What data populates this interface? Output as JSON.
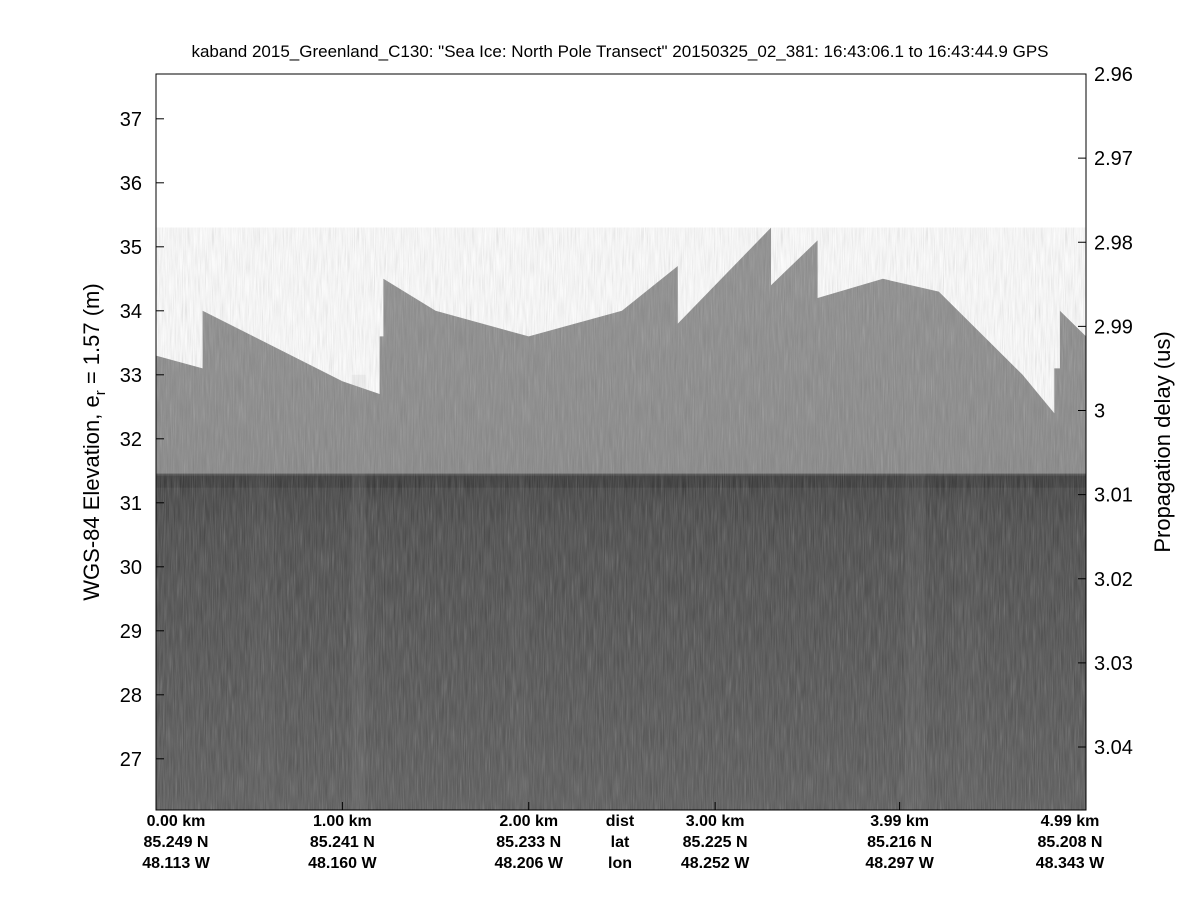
{
  "chart_data": {
    "type": "heatmap",
    "title": "kaband 2015_Greenland_C130: \"Sea Ice: North Pole Transect\"  20150325_02_381: 16:43:06.1 to 16:43:44.9 GPS",
    "ylabel_left": "WGS-84 Elevation, e",
    "ylabel_left_sub": "r",
    "ylabel_left_tail": " = 1.57 (m)",
    "ylabel_right": "Propagation delay (us)",
    "ylim_left": [
      26.2,
      37.7
    ],
    "yticks_left": [
      "27",
      "28",
      "29",
      "30",
      "31",
      "32",
      "33",
      "34",
      "35",
      "36",
      "37"
    ],
    "yticks_right": [
      "2.96",
      "2.97",
      "2.98",
      "2.99",
      "3",
      "3.01",
      "3.02",
      "3.03",
      "3.04"
    ],
    "x_columns": [
      {
        "dist": "0.00 km",
        "lat": "85.249 N",
        "lon": "48.113 W"
      },
      {
        "dist": "1.00 km",
        "lat": "85.241 N",
        "lon": "48.160 W"
      },
      {
        "dist": "2.00 km",
        "lat": "85.233 N",
        "lon": "48.206 W"
      },
      {
        "dist": "3.00 km",
        "lat": "85.225 N",
        "lon": "48.252 W"
      },
      {
        "dist": "3.99 km",
        "lat": "85.216 N",
        "lon": "48.297 W"
      },
      {
        "dist": "4.99 km",
        "lat": "85.208 N",
        "lon": "48.343 W"
      }
    ],
    "x_row_labels": {
      "dist": "dist",
      "lat": "lat",
      "lon": "lon"
    },
    "surface_top": [
      [
        0.0,
        33.3
      ],
      [
        0.25,
        33.1
      ],
      [
        0.25,
        34.0
      ],
      [
        1.0,
        32.9
      ],
      [
        1.2,
        32.7
      ],
      [
        1.2,
        33.6
      ],
      [
        1.22,
        33.6
      ],
      [
        1.22,
        34.5
      ],
      [
        1.5,
        34.0
      ],
      [
        2.0,
        33.6
      ],
      [
        2.5,
        34.0
      ],
      [
        2.8,
        34.7
      ],
      [
        2.8,
        33.8
      ],
      [
        3.3,
        35.3
      ],
      [
        3.3,
        34.4
      ],
      [
        3.55,
        35.1
      ],
      [
        3.55,
        34.2
      ],
      [
        3.9,
        34.5
      ],
      [
        4.2,
        34.3
      ],
      [
        4.65,
        33.0
      ],
      [
        4.82,
        32.4
      ],
      [
        4.82,
        33.1
      ],
      [
        4.85,
        33.1
      ],
      [
        4.85,
        34.0
      ],
      [
        4.99,
        33.6
      ]
    ],
    "ice_interface": 31.3
  }
}
